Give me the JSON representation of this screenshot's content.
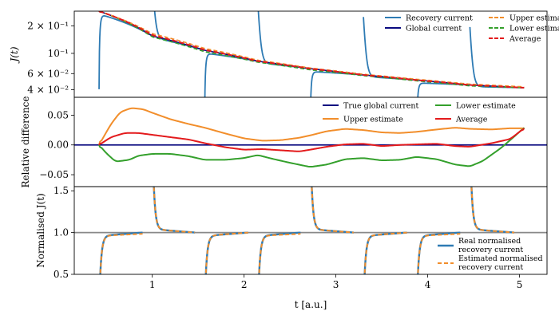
{
  "colors": {
    "recovery": "#2e7bb4",
    "global": "#0a0a80",
    "upper": "#f28e2b",
    "lower": "#34a02c",
    "average": "#e31a1c",
    "refline": "#888888"
  },
  "chart_data": [
    {
      "type": "line",
      "panel": "top",
      "ylabel": "J(t)",
      "yscale": "log",
      "xlim": [
        0.15,
        5.3
      ],
      "ylim": [
        0.033,
        0.29
      ],
      "yticks": [
        {
          "value": 0.2,
          "label": "2 × 10⁻¹"
        },
        {
          "value": 0.1,
          "label": "10⁻¹"
        },
        {
          "value": 0.06,
          "label": "6 × 10⁻²"
        },
        {
          "value": 0.04,
          "label": "4 × 10⁻²"
        }
      ],
      "legend": {
        "placement": "top-right",
        "entries": [
          {
            "label": "Recovery current",
            "series": "recovery"
          },
          {
            "label": "Upper estimate",
            "series": "upper"
          },
          {
            "label": "Global current",
            "series": "global"
          },
          {
            "label": "Lower estimate",
            "series": "lower"
          },
          {
            "label": "",
            "series": ""
          },
          {
            "label": "Average",
            "series": "average"
          }
        ]
      },
      "segment_starts": [
        0.42,
        1.0,
        1.57,
        2.15,
        2.72,
        3.3,
        3.88,
        4.46,
        5.05
      ],
      "series": [
        {
          "name": "Global current",
          "id": "global",
          "x": [
            0.42,
            1.0,
            1.57,
            2.15,
            2.72,
            3.3,
            3.88,
            4.46,
            5.05
          ],
          "y": [
            0.29,
            0.155,
            0.108,
            0.082,
            0.068,
            0.058,
            0.051,
            0.045,
            0.042
          ]
        },
        {
          "name": "Upper estimate",
          "id": "upper",
          "x": [
            0.42,
            1.0,
            1.57,
            2.15,
            2.72,
            3.3,
            3.88,
            4.46,
            5.05
          ],
          "y": [
            0.29,
            0.164,
            0.113,
            0.084,
            0.069,
            0.059,
            0.052,
            0.046,
            0.043
          ]
        },
        {
          "name": "Lower estimate",
          "id": "lower",
          "x": [
            0.42,
            1.0,
            1.57,
            2.15,
            2.72,
            3.3,
            3.88,
            4.46,
            5.05
          ],
          "y": [
            0.29,
            0.151,
            0.104,
            0.08,
            0.066,
            0.057,
            0.05,
            0.044,
            0.042
          ]
        },
        {
          "name": "Average",
          "id": "average",
          "x": [
            0.42,
            1.0,
            1.57,
            2.15,
            2.72,
            3.3,
            3.88,
            4.46,
            5.05
          ],
          "y": [
            0.29,
            0.158,
            0.109,
            0.082,
            0.068,
            0.058,
            0.051,
            0.045,
            0.042
          ]
        }
      ]
    },
    {
      "type": "line",
      "panel": "middle",
      "ylabel": "Relative difference",
      "xlim": [
        0.15,
        5.3
      ],
      "ylim": [
        -0.07,
        0.08
      ],
      "yticks": [
        {
          "value": 0.05,
          "label": "0.05"
        },
        {
          "value": 0.0,
          "label": "0.00"
        },
        {
          "value": -0.05,
          "label": "−0.05"
        }
      ],
      "legend": {
        "placement": "top-right",
        "entries": [
          {
            "label": "True global current",
            "series": "global"
          },
          {
            "label": "Lower estimate",
            "series": "lower"
          },
          {
            "label": "Upper estimate",
            "series": "upper"
          },
          {
            "label": "Average",
            "series": "average"
          }
        ]
      },
      "series": [
        {
          "name": "True global current",
          "id": "global",
          "x": [
            0.42,
            5.3
          ],
          "y": [
            0.0,
            0.0
          ]
        },
        {
          "name": "Upper estimate",
          "id": "upper",
          "x": [
            0.42,
            0.55,
            0.65,
            0.77,
            0.9,
            1.0,
            1.2,
            1.4,
            1.57,
            1.8,
            2.0,
            2.2,
            2.4,
            2.6,
            2.72,
            2.9,
            3.1,
            3.3,
            3.5,
            3.7,
            3.88,
            4.1,
            4.3,
            4.46,
            4.7,
            4.9,
            5.05
          ],
          "y": [
            0.0,
            0.035,
            0.055,
            0.062,
            0.06,
            0.054,
            0.043,
            0.035,
            0.029,
            0.019,
            0.011,
            0.007,
            0.008,
            0.012,
            0.016,
            0.023,
            0.027,
            0.025,
            0.021,
            0.02,
            0.022,
            0.026,
            0.029,
            0.027,
            0.026,
            0.028,
            0.028
          ]
        },
        {
          "name": "Lower estimate",
          "id": "lower",
          "x": [
            0.42,
            0.5,
            0.6,
            0.75,
            0.85,
            1.0,
            1.2,
            1.4,
            1.57,
            1.8,
            2.0,
            2.15,
            2.3,
            2.5,
            2.72,
            2.9,
            3.1,
            3.3,
            3.5,
            3.7,
            3.88,
            4.1,
            4.3,
            4.46,
            4.6,
            4.8,
            4.95,
            5.05
          ],
          "y": [
            0.0,
            -0.014,
            -0.028,
            -0.025,
            -0.018,
            -0.015,
            -0.015,
            -0.019,
            -0.025,
            -0.025,
            -0.022,
            -0.017,
            -0.023,
            -0.03,
            -0.037,
            -0.033,
            -0.024,
            -0.022,
            -0.026,
            -0.025,
            -0.02,
            -0.024,
            -0.033,
            -0.036,
            -0.027,
            -0.005,
            0.015,
            0.029
          ]
        },
        {
          "name": "Average",
          "id": "average",
          "x": [
            0.42,
            0.55,
            0.7,
            0.85,
            1.0,
            1.2,
            1.4,
            1.57,
            1.8,
            2.0,
            2.2,
            2.4,
            2.6,
            2.72,
            2.9,
            3.1,
            3.3,
            3.5,
            3.7,
            3.88,
            4.1,
            4.3,
            4.46,
            4.7,
            4.9,
            5.05
          ],
          "y": [
            0.0,
            0.013,
            0.02,
            0.02,
            0.017,
            0.013,
            0.009,
            0.003,
            -0.004,
            -0.008,
            -0.007,
            -0.009,
            -0.011,
            -0.008,
            -0.003,
            0.001,
            0.002,
            -0.002,
            0.0,
            0.001,
            0.002,
            -0.002,
            -0.003,
            0.003,
            0.01,
            0.028
          ]
        }
      ]
    },
    {
      "type": "line",
      "panel": "bottom",
      "ylabel": "Normalised J(t)",
      "xlabel": "t [a.u.]",
      "xlim": [
        0.15,
        5.3
      ],
      "ylim": [
        0.5,
        1.55
      ],
      "xticks": [
        {
          "value": 1,
          "label": "1"
        },
        {
          "value": 2,
          "label": "2"
        },
        {
          "value": 3,
          "label": "3"
        },
        {
          "value": 4,
          "label": "4"
        },
        {
          "value": 5,
          "label": "5"
        }
      ],
      "yticks": [
        {
          "value": 1.5,
          "label": "1.5"
        },
        {
          "value": 1.0,
          "label": "1.0"
        },
        {
          "value": 0.5,
          "label": "0.5"
        }
      ],
      "reference_line": 1.0,
      "legend": {
        "placement": "lower-right",
        "entries": [
          {
            "label": "Real normalised",
            "label2": "recovery current",
            "series": "real"
          },
          {
            "label": "Estimated normalised",
            "label2": "recovery current",
            "series": "estimated"
          }
        ]
      },
      "segments_rising": [
        {
          "start": 0.42,
          "end": 1.0
        },
        {
          "start": 1.57,
          "end": 2.15
        },
        {
          "start": 2.15,
          "end": 2.72
        },
        {
          "start": 3.3,
          "end": 3.88
        },
        {
          "start": 3.88,
          "end": 4.46
        }
      ],
      "segments_falling": [
        {
          "start": 1.0,
          "end": 1.57
        },
        {
          "start": 2.72,
          "end": 3.3
        },
        {
          "start": 4.46,
          "end": 5.05
        }
      ],
      "series": [
        {
          "name": "Real normalised recovery current",
          "id": "real"
        },
        {
          "name": "Estimated normalised recovery current",
          "id": "estimated"
        }
      ]
    }
  ]
}
